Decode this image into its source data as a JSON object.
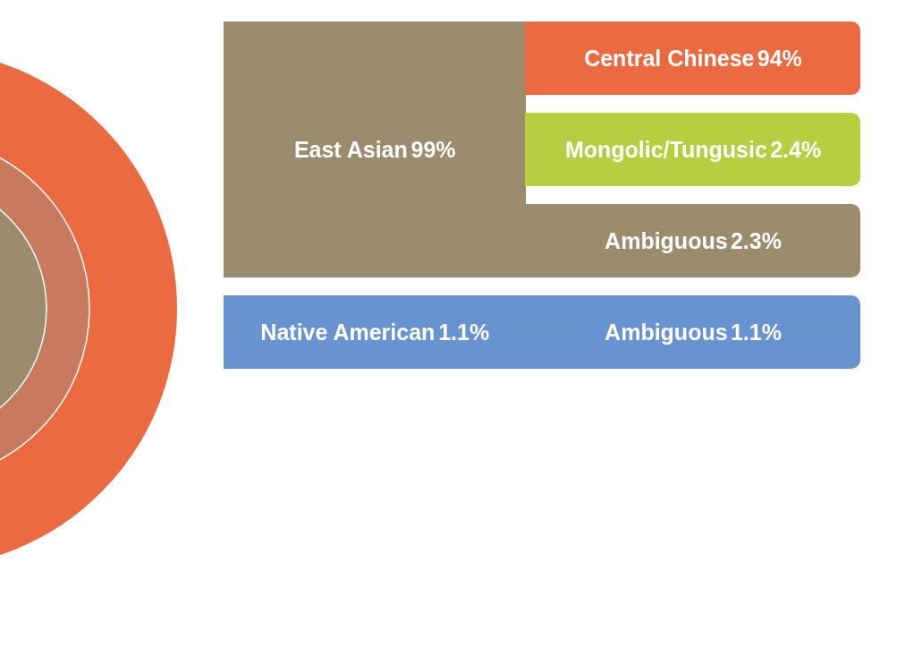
{
  "chart_data": [
    {
      "type": "other",
      "categories": [
        "East Asian",
        "Central Chinese",
        "Mongolic/Tungusic",
        "Ambiguous"
      ],
      "values": [
        99,
        94,
        2.4,
        2.3
      ],
      "value_labels": [
        "99%",
        "94%",
        "2.4%",
        "2.3%"
      ],
      "colors": [
        "#9b8c6d",
        "#ec6a40",
        "#b5cf40",
        "#9b8c6d"
      ]
    },
    {
      "type": "other",
      "categories": [
        "Native American",
        "Ambiguous"
      ],
      "values": [
        1.1,
        1.1
      ],
      "value_labels": [
        "1.1%",
        "1.1%"
      ],
      "colors": [
        "#6893d1",
        "#6893d1"
      ]
    }
  ]
}
